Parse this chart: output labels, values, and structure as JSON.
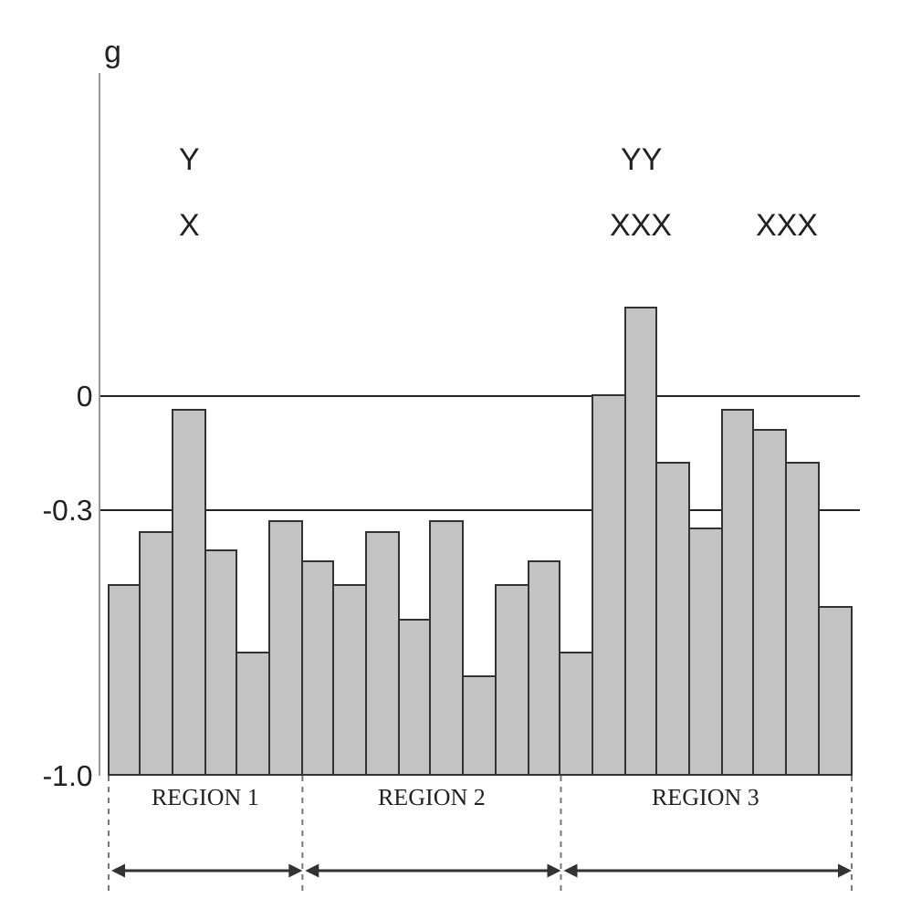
{
  "chart_data": {
    "type": "bar",
    "ylabel": "g",
    "categories": [
      null,
      null,
      null,
      null,
      null,
      null,
      null,
      null,
      null,
      null,
      null,
      null,
      null,
      null,
      null,
      null,
      null,
      null,
      null,
      null,
      null,
      null,
      null
    ],
    "base": [
      -1,
      -1,
      -1,
      -1,
      -1,
      -1,
      -1,
      -1,
      -1,
      -1,
      -1,
      -1,
      -1,
      -1,
      -1,
      -1,
      -1,
      -1,
      -1,
      -1,
      -1,
      -1,
      -1
    ],
    "values": [
      0.5,
      0.64,
      0.96,
      0.59,
      0.32,
      0.67,
      0.56,
      0.5,
      0.64,
      0.41,
      0.67,
      0.26,
      0.5,
      0.56,
      0.32,
      1.0,
      1.23,
      0.82,
      0.65,
      0.96,
      0.91,
      0.82,
      0.44
    ],
    "color": "#c4c4c4",
    "ylim": [
      -1.0,
      0.85
    ],
    "yticks": [
      {
        "value": 0,
        "label": "0"
      },
      {
        "value": -0.3,
        "label": "-0.3"
      },
      {
        "value": -1.0,
        "label": "-1.0"
      }
    ],
    "grid": "y",
    "tick_labels": "y",
    "annotations": [
      "Y",
      "X",
      "YY",
      "XXX",
      "XXX",
      "REGION 1",
      "REGION 2",
      "REGION 3"
    ]
  }
}
